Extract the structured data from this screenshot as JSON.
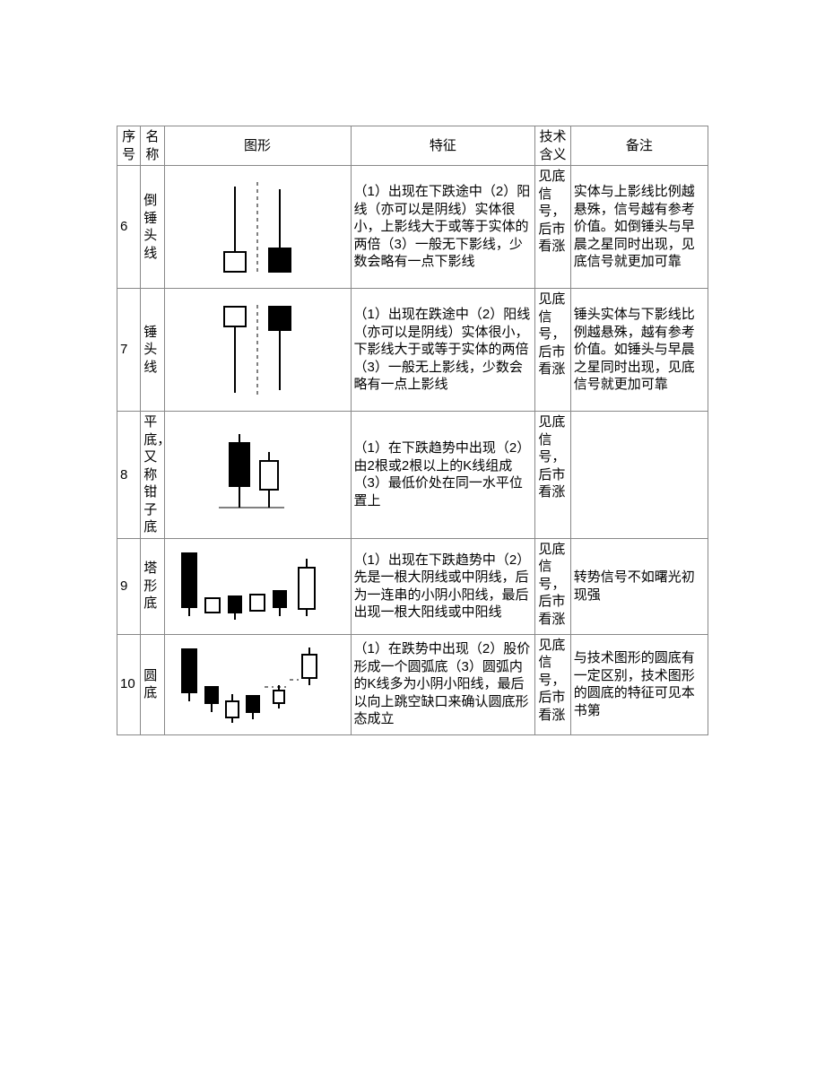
{
  "columns": {
    "num": "序号",
    "name": "名称",
    "fig": "图形",
    "feat": "特征",
    "sig": "技术含义",
    "note": "备注"
  },
  "rows": [
    {
      "num": "6",
      "name": "倒锤头线",
      "feat": "（1）出现在下跌途中（2）阳线（亦可以是阴线）实体很小，上影线大于或等于实体的两倍（3）一般无下影线，少数会略有一点下影线",
      "sig": "见底信号，后市看涨",
      "note": "实体与上影线比例越悬殊，信号越有参考价值。如倒锤头与早晨之星同时出现，见底信号就更加可靠",
      "svg": {
        "type": "inverted-hammer",
        "colors": {
          "stroke": "#000000",
          "fill_yang": "#ffffff",
          "fill_yin": "#000000"
        }
      }
    },
    {
      "num": "7",
      "name": "锤头线",
      "feat": "（1）出现在跌途中（2）阳线（亦可以是阴线）实体很小，下影线大于或等于实体的两倍（3）一般无上影线，少数会略有一点上影线",
      "sig": "见底信号，后市看涨",
      "note": "锤头实体与下影线比例越悬殊，越有参考价值。如锤头与早晨之星同时出现，见底信号就更加可靠",
      "svg": {
        "type": "hammer",
        "colors": {
          "stroke": "#000000",
          "fill_yang": "#ffffff",
          "fill_yin": "#000000"
        }
      }
    },
    {
      "num": "8",
      "name": "平底，又称钳子底",
      "feat": "（1）在下跌趋势中出现（2）由2根或2根以上的K线组成（3）最低价处在同一水平位置上",
      "sig": "见底信号，后市看涨",
      "note": "",
      "svg": {
        "type": "flat-bottom",
        "colors": {
          "stroke": "#000000",
          "fill_yang": "#ffffff",
          "fill_yin": "#000000"
        }
      }
    },
    {
      "num": "9",
      "name": "塔形底",
      "feat": "（1）出现在下跌趋势中（2）先是一根大阴线或中阴线，后为一连串的小阴小阳线，最后出现一根大阳线或中阳线",
      "sig": "见底信号，后市看涨",
      "note": "转势信号不如曙光初现强",
      "svg": {
        "type": "tower-bottom",
        "colors": {
          "stroke": "#000000",
          "fill_yang": "#ffffff",
          "fill_yin": "#000000"
        }
      }
    },
    {
      "num": "10",
      "name": "圆底",
      "feat": "（1）在跌势中出现（2）股价形成一个圆弧底（3）圆弧内的K线多为小阴小阳线，最后以向上跳空缺口来确认圆底形态成立",
      "sig": "见底信号，后市看涨",
      "note": "与技术图形的圆底有一定区别，技术图形的圆底的特征可见本书第",
      "svg": {
        "type": "round-bottom",
        "colors": {
          "stroke": "#000000",
          "fill_yang": "#ffffff",
          "fill_yin": "#000000"
        }
      }
    }
  ],
  "svg_common": {
    "stroke_width": 2,
    "dash_pattern": "4,4"
  }
}
